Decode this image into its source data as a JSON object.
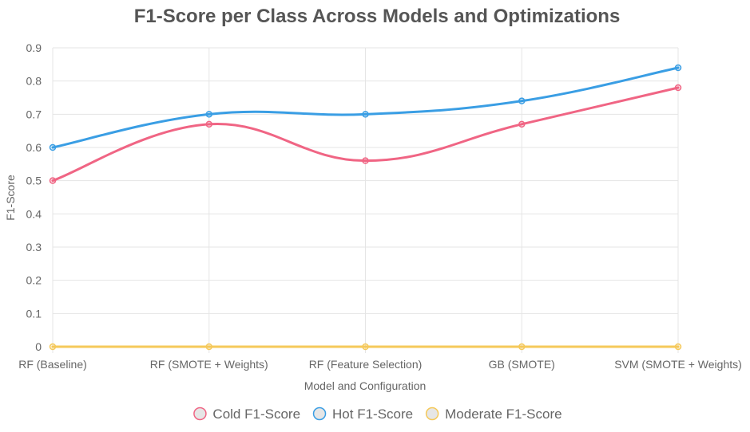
{
  "chart_data": {
    "type": "line",
    "title": "F1-Score per Class Across Models and Optimizations",
    "xlabel": "Model and Configuration",
    "ylabel": "F1-Score",
    "categories": [
      "RF (Baseline)",
      "RF (SMOTE + Weights)",
      "RF (Feature Selection)",
      "GB (SMOTE)",
      "SVM (SMOTE + Weights)"
    ],
    "ylim": [
      0,
      0.9
    ],
    "yticks": [
      0,
      0.1,
      0.2,
      0.3,
      0.4,
      0.5,
      0.6,
      0.7,
      0.8,
      0.9
    ],
    "grid": true,
    "legend_position": "bottom",
    "smooth": true,
    "series": [
      {
        "name": "Cold F1-Score",
        "values": [
          0.5,
          0.67,
          0.56,
          0.67,
          0.78
        ],
        "color": "#f06584",
        "fill": "rgba(240,101,132,0.2)"
      },
      {
        "name": "Hot F1-Score",
        "values": [
          0.6,
          0.7,
          0.7,
          0.74,
          0.84
        ],
        "color": "#3a9ee4",
        "fill": "rgba(58,158,228,0.2)"
      },
      {
        "name": "Moderate F1-Score",
        "values": [
          0,
          0,
          0,
          0,
          0
        ],
        "color": "#f5c95a",
        "fill": "rgba(245,201,90,0.2)"
      }
    ]
  }
}
